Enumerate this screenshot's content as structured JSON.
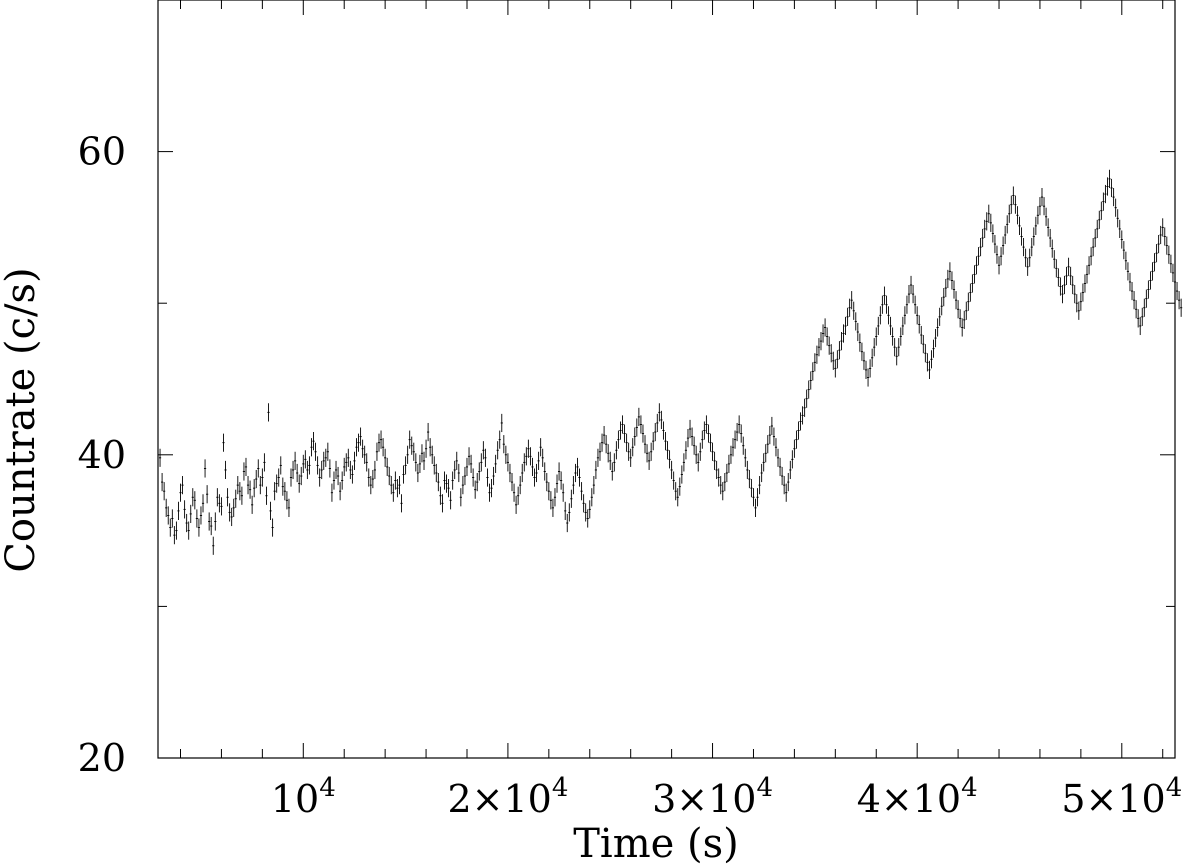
{
  "chart_data": {
    "type": "scatter",
    "title": "",
    "xlabel": "Time (s)",
    "ylabel": "Countrate (c/s)",
    "xlim": [
      2900,
      52600
    ],
    "ylim": [
      20,
      70
    ],
    "x_ticks": [
      {
        "value": 10000,
        "label": "10⁴"
      },
      {
        "value": 20000,
        "label": "2×10⁴"
      },
      {
        "value": 30000,
        "label": "3×10⁴"
      },
      {
        "value": 40000,
        "label": "4×10⁴"
      },
      {
        "value": 50000,
        "label": "5×10⁴"
      }
    ],
    "y_ticks": [
      {
        "value": 20,
        "label": "20"
      },
      {
        "value": 40,
        "label": "40"
      },
      {
        "value": 60,
        "label": "60"
      }
    ],
    "grid": false,
    "error_bars": true,
    "series": [
      {
        "x_start": 3000,
        "x_step": 100,
        "y_error": 0.6,
        "values": [
          39.8,
          38.2,
          37.6,
          36.5,
          36.0,
          35.2,
          35.8,
          34.7,
          35.0,
          36.3,
          37.5,
          38.0,
          36.4,
          35.5,
          35.0,
          36.1,
          37.2,
          37.0,
          35.8,
          35.2,
          36.0,
          36.8,
          39.1,
          37.4,
          35.6,
          35.3,
          34.0,
          35.6,
          37.2,
          36.8,
          36.6,
          40.8,
          39.0,
          37.2,
          36.2,
          35.9,
          36.5,
          37.1,
          38.0,
          37.6,
          37.3,
          38.9,
          39.2,
          38.0,
          37.7,
          36.7,
          37.8,
          38.4,
          39.1,
          38.0,
          38.5,
          39.5,
          37.3,
          42.8,
          36.3,
          35.2,
          37.6,
          38.1,
          38.5,
          39.3,
          37.9,
          37.6,
          37.0,
          36.5,
          38.5,
          39.0,
          39.6,
          38.8,
          38.1,
          38.6,
          39.4,
          39.7,
          39.0,
          39.3,
          40.5,
          40.9,
          40.2,
          39.3,
          38.5,
          39.0,
          39.6,
          39.8,
          40.2,
          39.1,
          37.5,
          38.3,
          39.0,
          38.6,
          37.6,
          38.3,
          39.2,
          39.5,
          39.8,
          39.0,
          38.7,
          39.6,
          40.5,
          40.8,
          41.2,
          40.4,
          40.0,
          39.5,
          38.5,
          38.0,
          38.4,
          39.0,
          40.2,
          40.8,
          41.0,
          40.5,
          39.8,
          39.2,
          38.6,
          38.0,
          37.5,
          38.3,
          37.8,
          38.0,
          36.8,
          38.7,
          39.3,
          40.0,
          41.0,
          40.6,
          40.2,
          39.5,
          38.8,
          39.4,
          40.1,
          39.6,
          40.4,
          41.5,
          40.5,
          40.0,
          39.3,
          38.8,
          38.2,
          37.3,
          36.8,
          38.3,
          38.1,
          37.8,
          37.0,
          38.3,
          39.0,
          39.6,
          38.8,
          37.2,
          38.0,
          38.6,
          39.2,
          39.9,
          39.4,
          38.5,
          37.7,
          38.2,
          38.9,
          39.5,
          40.3,
          39.8,
          38.5,
          37.5,
          37.8,
          38.6,
          39.4,
          40.3,
          41.0,
          42.1,
          40.7,
          40.0,
          39.5,
          38.8,
          38.2,
          37.5,
          36.7,
          37.3,
          38.0,
          38.8,
          39.5,
          39.9,
          40.4,
          39.9,
          39.2,
          38.5,
          38.8,
          39.6,
          40.5,
          39.8,
          38.9,
          38.2,
          37.6,
          37.0,
          36.5,
          37.2,
          38.1,
          38.9,
          38.3,
          37.5,
          36.3,
          35.5,
          36.2,
          37.1,
          38.0,
          38.8,
          39.2,
          38.5,
          37.6,
          36.8,
          36.2,
          35.8,
          36.4,
          37.2,
          38.0,
          39.0,
          39.8,
          40.2,
          40.8,
          41.3,
          40.7,
          40.1,
          39.6,
          38.9,
          39.5,
          40.3,
          41.0,
          41.6,
          42.0,
          41.4,
          40.8,
          40.2,
          39.8,
          40.5,
          41.2,
          41.8,
          42.5,
          42.0,
          41.4,
          40.7,
          40.1,
          39.6,
          40.2,
          40.9,
          41.5,
          42.1,
          42.8,
          42.3,
          41.6,
          40.9,
          40.3,
          39.7,
          39.0,
          38.3,
          37.6,
          37.2,
          37.9,
          38.7,
          39.5,
          40.3,
          41.1,
          41.7,
          41.2,
          40.6,
          40.0,
          39.5,
          40.2,
          41.0,
          41.6,
          42.0,
          41.4,
          40.8,
          40.2,
          39.6,
          39.0,
          38.5,
          38.0,
          37.6,
          38.2,
          38.8,
          39.4,
          40.0,
          40.5,
          41.0,
          41.5,
          42.0,
          41.4,
          40.6,
          39.8,
          39.0,
          38.4,
          37.8,
          37.2,
          36.5,
          37.2,
          38.0,
          38.8,
          39.5,
          40.1,
          40.7,
          41.3,
          41.9,
          41.2,
          40.5,
          39.8,
          39.2,
          38.6,
          38.0,
          37.5,
          38.2,
          39.0,
          39.7,
          40.4,
          41.0,
          41.6,
          42.2,
          42.6,
          43.1,
          43.7,
          44.3,
          44.9,
          45.5,
          46.1,
          46.6,
          47.1,
          47.5,
          48.0,
          48.4,
          47.8,
          47.2,
          46.7,
          46.2,
          45.7,
          46.3,
          46.9,
          47.5,
          48.0,
          48.5,
          49.1,
          49.7,
          50.2,
          49.5,
          48.8,
          48.1,
          47.4,
          46.8,
          46.2,
          45.6,
          45.1,
          45.7,
          46.4,
          47.1,
          47.8,
          48.5,
          49.2,
          49.9,
          50.5,
          49.9,
          49.2,
          48.5,
          47.8,
          47.1,
          46.5,
          47.1,
          47.8,
          48.5,
          49.2,
          49.9,
          50.6,
          51.2,
          50.6,
          49.9,
          49.2,
          48.6,
          47.9,
          47.3,
          46.7,
          46.1,
          45.6,
          46.3,
          47.0,
          47.7,
          48.4,
          49.1,
          49.8,
          50.4,
          51.0,
          51.6,
          52.1,
          51.5,
          50.9,
          50.2,
          49.6,
          49.0,
          48.4,
          48.9,
          49.5,
          50.1,
          50.7,
          51.3,
          51.9,
          52.5,
          53.1,
          53.7,
          54.3,
          54.9,
          55.4,
          55.9,
          55.3,
          54.6,
          53.9,
          53.2,
          52.5,
          53.1,
          53.8,
          54.5,
          55.2,
          55.9,
          56.5,
          57.1,
          56.5,
          55.8,
          55.1,
          54.4,
          53.7,
          53.0,
          52.4,
          53.0,
          53.7,
          54.4,
          55.1,
          55.8,
          56.4,
          57.0,
          56.4,
          55.7,
          55.0,
          54.3,
          53.6,
          52.9,
          52.3,
          51.7,
          51.1,
          50.6,
          51.2,
          51.8,
          52.4,
          51.8,
          51.2,
          50.6,
          50.0,
          49.5,
          50.1,
          50.7,
          51.3,
          51.9,
          52.5,
          53.1,
          53.7,
          54.3,
          54.9,
          55.5,
          56.1,
          56.7,
          57.2,
          57.7,
          58.2,
          57.6,
          57.0,
          56.3,
          55.6,
          54.9,
          54.2,
          53.5,
          52.8,
          52.1,
          51.4,
          50.8,
          50.2,
          49.6,
          49.0,
          48.5,
          49.1,
          49.7,
          50.3,
          50.9,
          51.5,
          52.1,
          52.7,
          53.3,
          53.9,
          54.5,
          55.0,
          54.4,
          53.8,
          53.2,
          52.6,
          52.0,
          51.4,
          50.8,
          50.2,
          49.7
        ]
      }
    ]
  }
}
